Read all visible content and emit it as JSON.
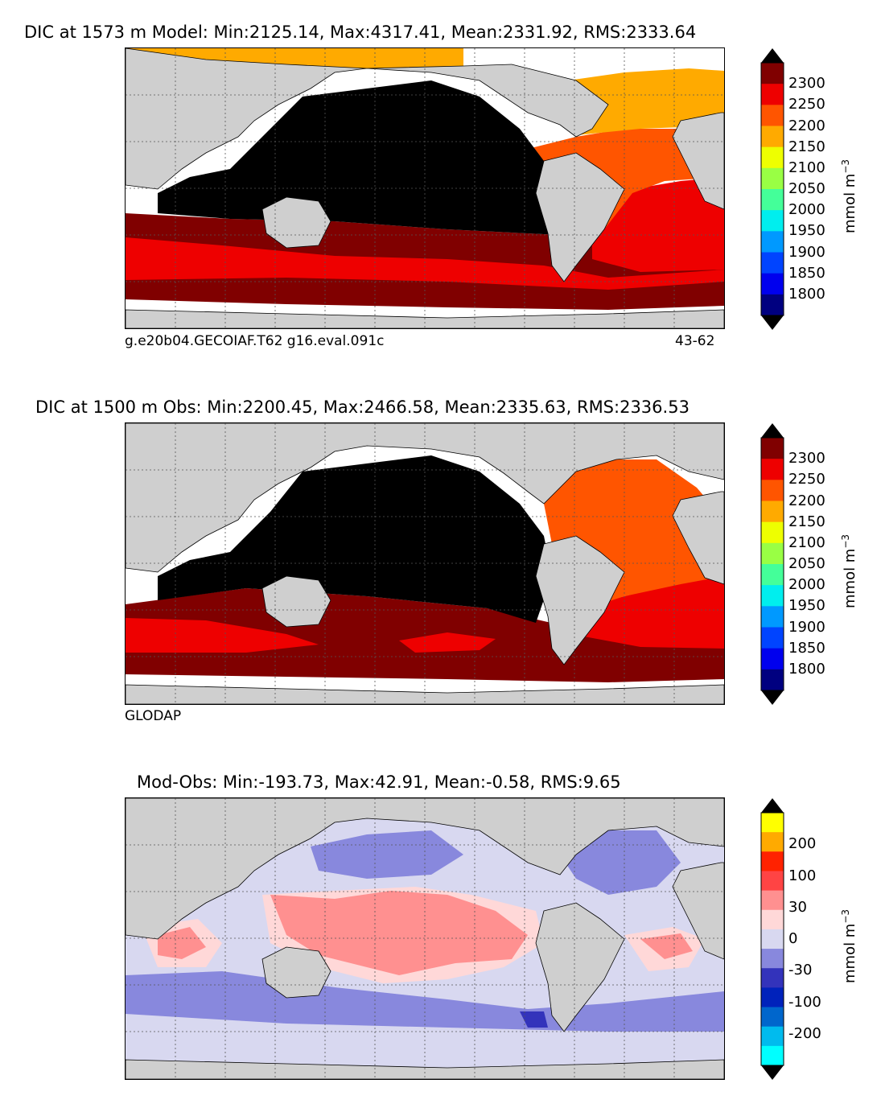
{
  "panels": [
    {
      "id": "model",
      "title": "DIC at 1573 m Model: Min:2125.14, Max:4317.41, Mean:2331.92, RMS:2333.64",
      "footnote_left": "g.e20b04.GECOIAF.T62 g16.eval.091c",
      "footnote_right": "43-62",
      "colorbar": {
        "unit": "mmol m",
        "unit_exp": "−3",
        "ticks": [
          "2300",
          "2250",
          "2200",
          "2150",
          "2100",
          "2050",
          "2000",
          "1950",
          "1900",
          "1850",
          "1800"
        ],
        "colors": [
          "#800000",
          "#ee0000",
          "#ff5500",
          "#ffaa00",
          "#eeff00",
          "#99ff44",
          "#44ff99",
          "#00eeee",
          "#0099ff",
          "#0044ff",
          "#0000ee",
          "#000080"
        ],
        "over_color": "#000000",
        "under_color": "#000000"
      }
    },
    {
      "id": "obs",
      "title": "DIC at 1500 m Obs: Min:2200.45, Max:2466.58, Mean:2335.63, RMS:2336.53",
      "footnote_left": "GLODAP",
      "footnote_right": "",
      "colorbar": {
        "unit": "mmol m",
        "unit_exp": "−3",
        "ticks": [
          "2300",
          "2250",
          "2200",
          "2150",
          "2100",
          "2050",
          "2000",
          "1950",
          "1900",
          "1850",
          "1800"
        ],
        "colors": [
          "#800000",
          "#ee0000",
          "#ff5500",
          "#ffaa00",
          "#eeff00",
          "#99ff44",
          "#44ff99",
          "#00eeee",
          "#0099ff",
          "#0044ff",
          "#0000ee",
          "#000080"
        ],
        "over_color": "#000000",
        "under_color": "#000000"
      }
    },
    {
      "id": "diff",
      "title": "Mod-Obs: Min:-193.73, Max:42.91, Mean:-0.58, RMS:9.65",
      "footnote_left": "",
      "footnote_right": "",
      "colorbar": {
        "unit": "mmol m",
        "unit_exp": "−3",
        "ticks": [
          "200",
          "100",
          "30",
          "0",
          "-30",
          "-100",
          "-200"
        ],
        "colors": [
          "#ffff00",
          "#ffaa00",
          "#ff2200",
          "#ff4444",
          "#ff9090",
          "#ffd8d8",
          "#d8d8f0",
          "#8888dd",
          "#3333bb",
          "#0022bb",
          "#0066cc",
          "#00bbee",
          "#00ffff"
        ],
        "over_color": "#000000",
        "under_color": "#000000"
      }
    }
  ],
  "colors": {
    "land": "#cfcfcf",
    "missing": "#ffffff",
    "pacific_deep": "#000000"
  }
}
